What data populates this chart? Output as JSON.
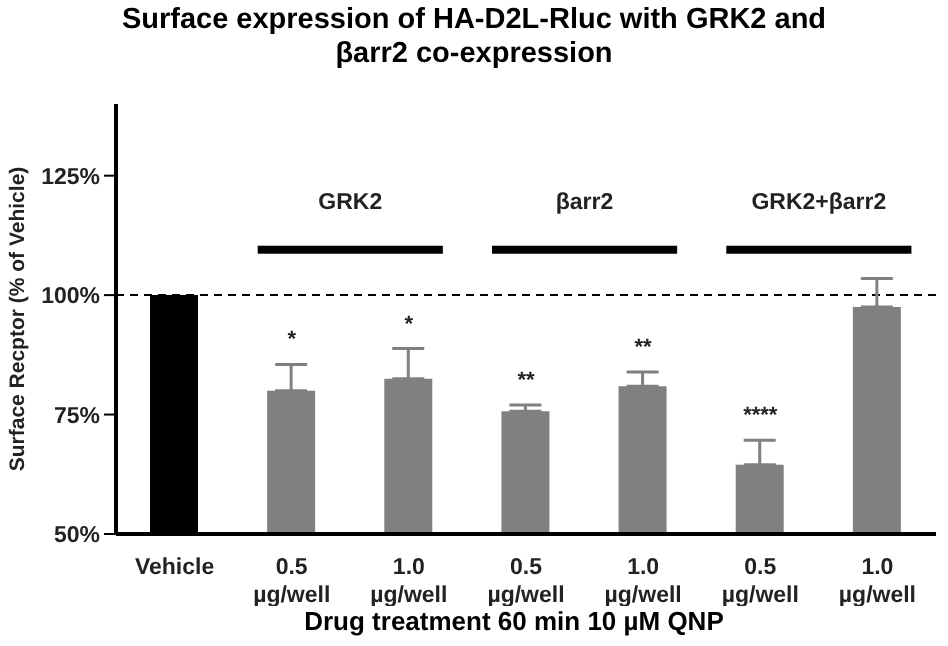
{
  "chart_data": {
    "type": "bar",
    "title": "Surface expression of HA-D2L-Rluc with GRK2 and βarr2 co-expression",
    "xlabel": "Drug treatment 60 min 10 µM QNP",
    "ylabel": "Surface Recptor (% of Vehicle)",
    "categories": [
      "Vehicle",
      "0.5 µg/well",
      "1.0 µg/well",
      "0.5 µg/well",
      "1.0 µg/well",
      "0.5 µg/well",
      "1.0 µg/well"
    ],
    "values": [
      100,
      80,
      82.5,
      75.7,
      80.9,
      64.5,
      97.5
    ],
    "colors": [
      "#000000",
      "#808080",
      "#808080",
      "#808080",
      "#808080",
      "#808080",
      "#808080"
    ],
    "errors": [
      null,
      [
        80,
        85.5
      ],
      [
        82.5,
        88.8
      ],
      [
        75.7,
        77
      ],
      [
        80.9,
        83.9
      ],
      [
        64.5,
        69.6
      ],
      [
        97.5,
        103.5
      ]
    ],
    "ylim": [
      50,
      140
    ],
    "yticks": [
      {
        "value": 50,
        "label": "50%"
      },
      {
        "value": 75,
        "label": "75%"
      },
      {
        "value": 100,
        "label": "100%"
      },
      {
        "value": 125,
        "label": "125%"
      }
    ],
    "ref_lines": [
      {
        "axis": "y",
        "value": 100,
        "color": "#000000",
        "line_style": "dashed"
      }
    ],
    "annotations": [
      "GRK2",
      "βarr2",
      "GRK2+βarr2",
      "*",
      "*",
      "**",
      "**",
      "****"
    ]
  }
}
